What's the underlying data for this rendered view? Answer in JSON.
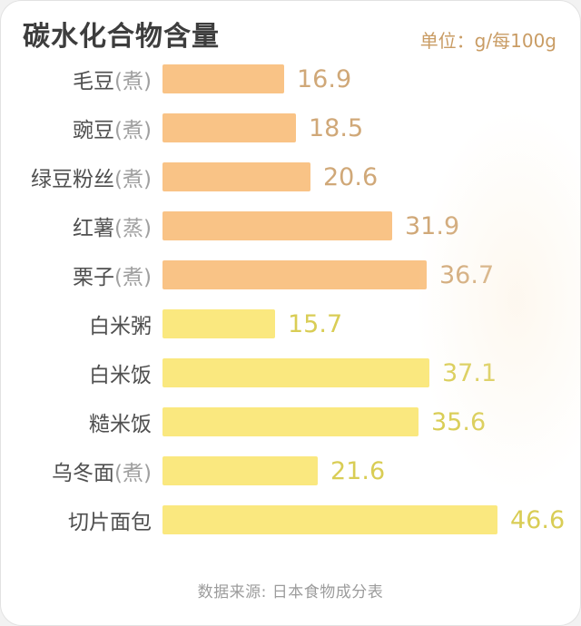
{
  "card": {
    "title": "碳水化合物含量",
    "unit_label": "单位：g/每100g",
    "source": "数据来源: 日本食物成分表"
  },
  "colors": {
    "orange_bar": "#f9c386",
    "yellow_bar": "#fae87f",
    "orange_value_text": "#d0a878",
    "yellow_value_text": "#d9cd55",
    "title_text": "#3d3d3d",
    "label_text": "#4f4f4f",
    "label_note_text": "#a0a0a0",
    "unit_text": "#c99c64",
    "source_text": "#9c9c9c"
  },
  "chart_data": {
    "type": "bar",
    "orientation": "horizontal",
    "title": "碳水化合物含量",
    "unit": "g/每100g",
    "xlabel": "",
    "ylabel": "",
    "xlim": [
      0,
      50
    ],
    "grid": false,
    "legend": "none",
    "categories": [
      "毛豆(煮)",
      "豌豆(煮)",
      "绿豆粉丝(煮)",
      "红薯(蒸)",
      "栗子(煮)",
      "白米粥",
      "白米饭",
      "糙米饭",
      "乌冬面(煮)",
      "切片面包"
    ],
    "values": [
      16.9,
      18.5,
      20.6,
      31.9,
      36.7,
      15.7,
      37.1,
      35.6,
      21.6,
      46.6
    ],
    "items": [
      {
        "name": "毛豆",
        "note": "(煮)",
        "value": "16.9",
        "group": "orange"
      },
      {
        "name": "豌豆",
        "note": "(煮)",
        "value": "18.5",
        "group": "orange"
      },
      {
        "name": "绿豆粉丝",
        "note": "(煮)",
        "value": "20.6",
        "group": "orange"
      },
      {
        "name": "红薯",
        "note": "(蒸)",
        "value": "31.9",
        "group": "orange"
      },
      {
        "name": "栗子",
        "note": "(煮)",
        "value": "36.7",
        "group": "orange"
      },
      {
        "name": "白米粥",
        "note": "",
        "value": "15.7",
        "group": "yellow"
      },
      {
        "name": "白米饭",
        "note": "",
        "value": "37.1",
        "group": "yellow"
      },
      {
        "name": "糙米饭",
        "note": "",
        "value": "35.6",
        "group": "yellow"
      },
      {
        "name": "乌冬面",
        "note": "(煮)",
        "value": "21.6",
        "group": "yellow"
      },
      {
        "name": "切片面包",
        "note": "",
        "value": "46.6",
        "group": "yellow"
      }
    ],
    "source": "数据来源: 日本食物成分表"
  }
}
